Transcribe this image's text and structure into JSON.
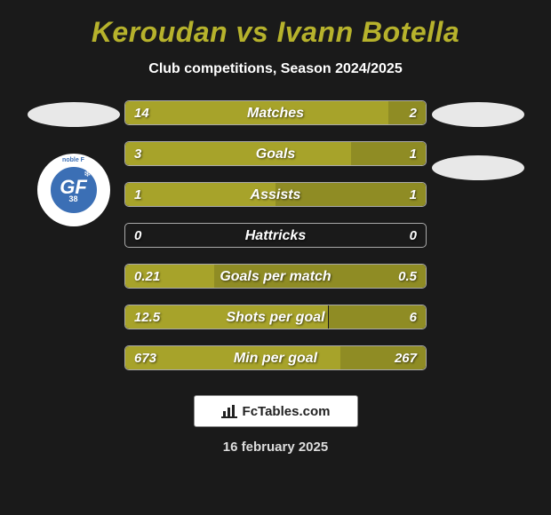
{
  "title": "Keroudan vs Ivann Botella",
  "subtitle": "Club competitions, Season 2024/2025",
  "footer_label": "FcTables.com",
  "footer_date": "16 february 2025",
  "colors": {
    "accent": "#a7a32a",
    "accent_dark": "#8f8c24",
    "bar_border": "#aaaaaa",
    "bg": "#1a1a1a",
    "title_color": "#b6b22c"
  },
  "left_club": {
    "initials": "GF",
    "sub": "38",
    "outer": "noble F",
    "bg": "#3b6fb5"
  },
  "stats": [
    {
      "label": "Matches",
      "left_val": "14",
      "right_val": "2",
      "left_pct": 87.5,
      "right_pct": 12.5
    },
    {
      "label": "Goals",
      "left_val": "3",
      "right_val": "1",
      "left_pct": 75,
      "right_pct": 25
    },
    {
      "label": "Assists",
      "left_val": "1",
      "right_val": "1",
      "left_pct": 50,
      "right_pct": 50
    },
    {
      "label": "Hattricks",
      "left_val": "0",
      "right_val": "0",
      "left_pct": 0,
      "right_pct": 0
    },
    {
      "label": "Goals per match",
      "left_val": "0.21",
      "right_val": "0.5",
      "left_pct": 29.6,
      "right_pct": 70.4
    },
    {
      "label": "Shots per goal",
      "left_val": "12.5",
      "right_val": "6",
      "left_pct": 67.6,
      "right_pct": 32.4
    },
    {
      "label": "Min per goal",
      "left_val": "673",
      "right_val": "267",
      "left_pct": 71.6,
      "right_pct": 28.4
    }
  ]
}
